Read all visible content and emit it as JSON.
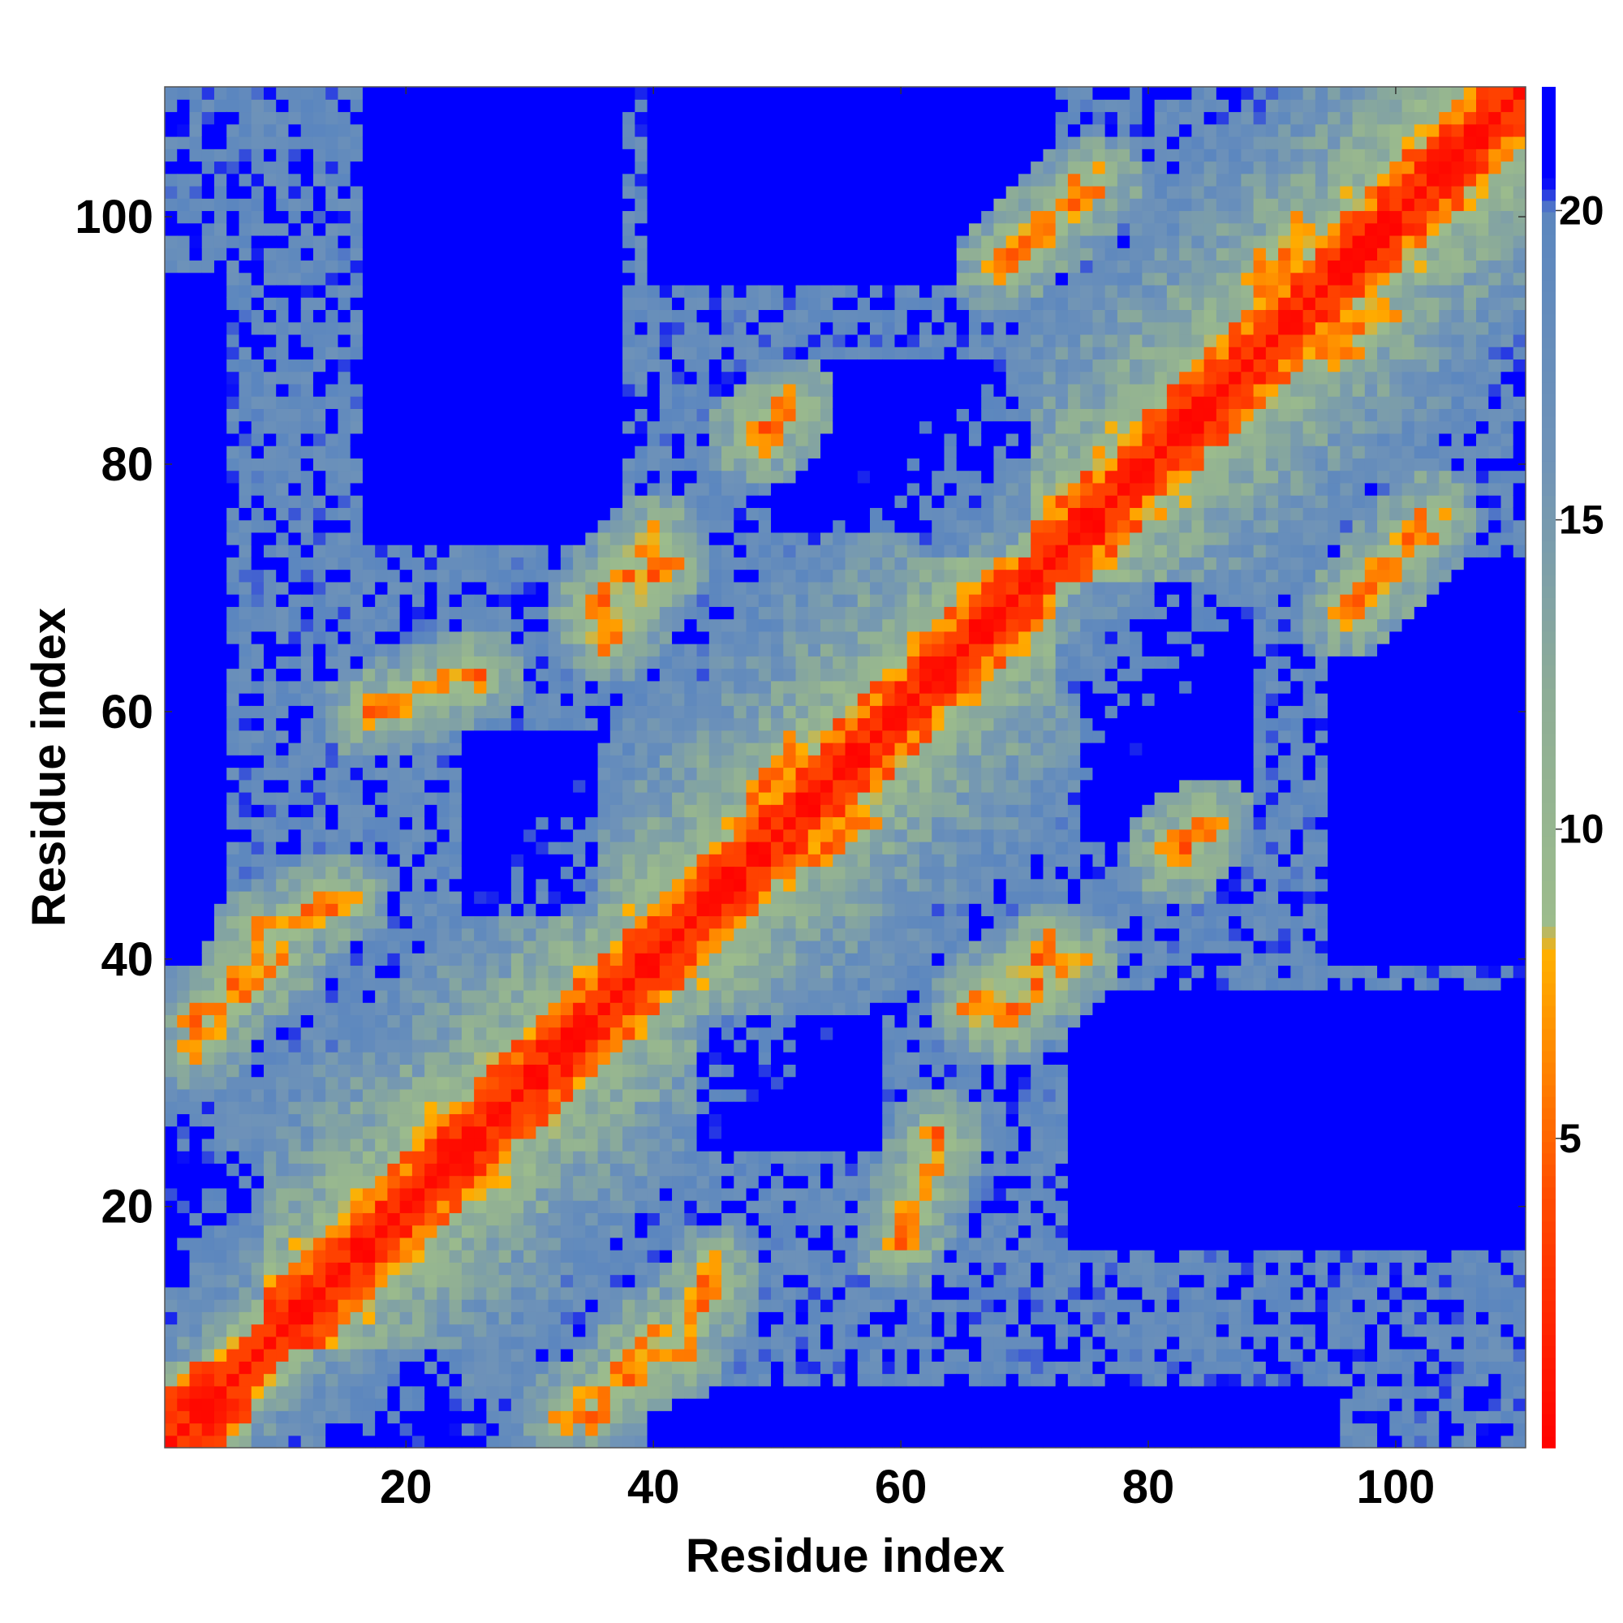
{
  "chart_data": {
    "type": "heatmap",
    "title": "",
    "xlabel": "Residue index",
    "ylabel": "Residue index",
    "n_residues": 110,
    "x_ticks": [
      20,
      40,
      60,
      80,
      100
    ],
    "y_ticks": [
      20,
      40,
      60,
      80,
      100
    ],
    "xlim": [
      0.5,
      110.5
    ],
    "ylim": [
      0.5,
      110.5
    ],
    "grid": false,
    "colorbar": {
      "position": "right",
      "min": 0,
      "max": 22,
      "ticks": [
        5,
        10,
        15,
        20
      ],
      "stops": [
        {
          "value": 0,
          "color": "#ff0000"
        },
        {
          "value": 4,
          "color": "#ff4a00"
        },
        {
          "value": 6,
          "color": "#ff8000"
        },
        {
          "value": 8,
          "color": "#ffb000"
        },
        {
          "value": 8.5,
          "color": "#9cbc8c"
        },
        {
          "value": 12,
          "color": "#8fae95"
        },
        {
          "value": 16,
          "color": "#6f93b8"
        },
        {
          "value": 20,
          "color": "#5b86bf"
        },
        {
          "value": 20.5,
          "color": "#0000ff"
        },
        {
          "value": 22,
          "color": "#0000ff"
        }
      ]
    },
    "value_description": "Pairwise residue distance map: diagonal distances near 0 (red), near-diagonal band 4-8 (orange), mid-range 9-18 (green to steel blue), distant pairs above 20 (blue)",
    "contact_segments": [
      {
        "x1": 3,
        "y1": 35,
        "x2": 10,
        "y2": 40
      },
      {
        "x1": 8,
        "y1": 42,
        "x2": 15,
        "y2": 45
      },
      {
        "x1": 17,
        "y1": 60,
        "x2": 26,
        "y2": 63
      },
      {
        "x1": 35,
        "y1": 68,
        "x2": 40,
        "y2": 74
      },
      {
        "x1": 66,
        "y1": 36,
        "x2": 72,
        "y2": 41
      },
      {
        "x1": 68,
        "y1": 96,
        "x2": 76,
        "y2": 103
      },
      {
        "x1": 96,
        "y1": 68,
        "x2": 102,
        "y2": 74
      },
      {
        "x1": 33,
        "y1": 3,
        "x2": 40,
        "y2": 8
      },
      {
        "x1": 42,
        "y1": 8,
        "x2": 45,
        "y2": 15
      },
      {
        "x1": 89,
        "y1": 95,
        "x2": 92,
        "y2": 99
      },
      {
        "x1": 48,
        "y1": 52,
        "x2": 51,
        "y2": 57
      },
      {
        "x1": 49,
        "y1": 82,
        "x2": 51,
        "y2": 85
      },
      {
        "x1": 82,
        "y1": 48,
        "x2": 85,
        "y2": 51
      }
    ],
    "far_blocks": [
      {
        "x": [
          17,
          37
        ],
        "y": [
          74,
          110
        ]
      },
      {
        "x": [
          74,
          110
        ],
        "y": [
          17,
          37
        ]
      },
      {
        "x": [
          25,
          35
        ],
        "y": [
          44,
          58
        ]
      },
      {
        "x": [
          44,
          58
        ],
        "y": [
          25,
          35
        ]
      },
      {
        "x": [
          1,
          5
        ],
        "y": [
          40,
          95
        ]
      },
      {
        "x": [
          40,
          95
        ],
        "y": [
          1,
          5
        ]
      },
      {
        "x": [
          40,
          72
        ],
        "y": [
          95,
          110
        ]
      },
      {
        "x": [
          95,
          110
        ],
        "y": [
          40,
          72
        ]
      },
      {
        "x": [
          75,
          88
        ],
        "y": [
          50,
          68
        ]
      },
      {
        "x": [
          50,
          68
        ],
        "y": [
          75,
          88
        ]
      },
      {
        "x": [
          1,
          8
        ],
        "y": [
          8,
          24
        ]
      },
      {
        "x": [
          8,
          24
        ],
        "y": [
          1,
          8
        ]
      },
      {
        "x": [
          62,
          70
        ],
        "y": [
          73,
          85
        ]
      },
      {
        "x": [
          73,
          85
        ],
        "y": [
          62,
          70
        ]
      }
    ]
  }
}
